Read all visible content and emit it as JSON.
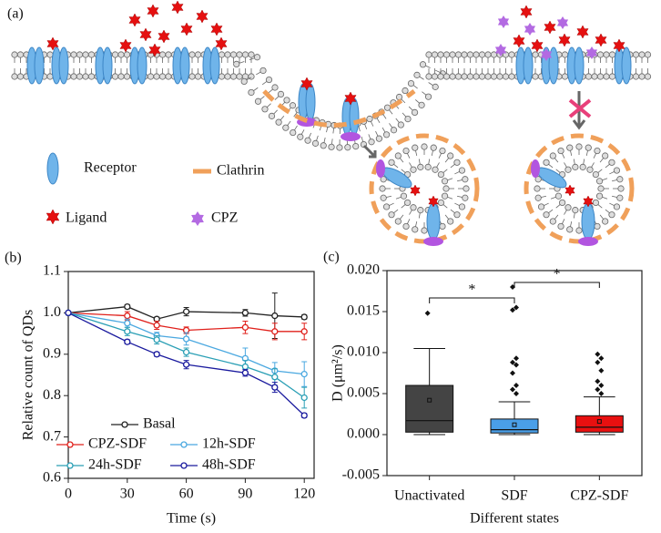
{
  "diagram": {
    "label": "(a)",
    "legend": [
      "Receptor",
      "Clathrin",
      "Ligand",
      "CPZ"
    ]
  },
  "chart_data": [
    {
      "type": "line",
      "panel_label": "(b)",
      "x_label": "Time (s)",
      "y_label": "Relative count of QDs",
      "x": [
        0,
        30,
        45,
        60,
        90,
        105,
        120
      ],
      "xlim": [
        0,
        125
      ],
      "xticks": [
        0,
        30,
        60,
        90,
        120
      ],
      "ylim": [
        0.6,
        1.1
      ],
      "yticks": [
        0.6,
        0.7,
        0.8,
        0.9,
        {
          "value": 1,
          "label": "1.0"
        },
        1.1
      ],
      "series": [
        {
          "name": "Basal",
          "color": "#222222",
          "values": [
            1.0,
            1.015,
            0.985,
            1.003,
            1.0,
            0.993,
            0.99
          ],
          "errors": [
            0,
            0.005,
            0.005,
            0.01,
            0.008,
            0.055,
            0.005
          ]
        },
        {
          "name": "CPZ-SDF",
          "color": "#e0201b",
          "values": [
            1.0,
            0.993,
            0.97,
            0.958,
            0.965,
            0.955,
            0.955
          ],
          "errors": [
            0,
            0.01,
            0.01,
            0.008,
            0.015,
            0.02,
            0.02
          ]
        },
        {
          "name": "12h-SDF",
          "color": "#4aa8e0",
          "values": [
            1.0,
            0.975,
            0.945,
            0.937,
            0.89,
            0.86,
            0.852
          ],
          "errors": [
            0,
            0.01,
            0.008,
            0.015,
            0.025,
            0.02,
            0.03
          ]
        },
        {
          "name": "24h-SDF",
          "color": "#2a9fb5",
          "values": [
            1.0,
            0.955,
            0.935,
            0.905,
            0.87,
            0.845,
            0.795
          ],
          "errors": [
            0,
            0.01,
            0.01,
            0.01,
            0.015,
            0.02,
            0.025
          ]
        },
        {
          "name": "48h-SDF",
          "color": "#1a1a9e",
          "values": [
            1.0,
            0.93,
            0.9,
            0.875,
            0.855,
            0.82,
            0.752
          ],
          "errors": [
            0,
            0.005,
            0.005,
            0.01,
            0.008,
            0.012,
            0.005
          ]
        }
      ]
    },
    {
      "type": "box",
      "panel_label": "(c)",
      "x_label": "Different states",
      "y_label": "D (μm²/s)",
      "categories": [
        "Unactivated",
        "SDF",
        "CPZ-SDF"
      ],
      "ylim": [
        -0.005,
        0.02
      ],
      "yticks": [
        -0.005,
        {
          "value": 0,
          "label": "0.000"
        },
        0.005,
        {
          "value": 0.01,
          "label": "0.010"
        },
        0.015,
        {
          "value": 0.02,
          "label": "0.020"
        }
      ],
      "annotations": [
        "*",
        "*"
      ],
      "boxes": [
        {
          "color": "#444444",
          "whisker_low": 0,
          "q1": 0.0003,
          "median": 0.0017,
          "q3": 0.006,
          "whisker_high": 0.0105,
          "mean": 0.0042,
          "outliers": [
            0.0148
          ]
        },
        {
          "color": "#4a9fe8",
          "whisker_low": 0,
          "q1": 0.0002,
          "median": 0.0006,
          "q3": 0.0019,
          "whisker_high": 0.004,
          "mean": 0.0012,
          "outliers": [
            0.018,
            0.0155,
            0.0152,
            0.0093,
            0.0088,
            0.0085,
            0.0075,
            0.006,
            0.0055,
            0.005
          ]
        },
        {
          "color": "#e81010",
          "whisker_low": 0,
          "q1": 0.0003,
          "median": 0.0009,
          "q3": 0.0023,
          "whisker_high": 0.0046,
          "mean": 0.0016,
          "outliers": [
            0.0098,
            0.0093,
            0.0088,
            0.0078,
            0.0065,
            0.006,
            0.0055,
            0.005
          ]
        }
      ]
    }
  ]
}
